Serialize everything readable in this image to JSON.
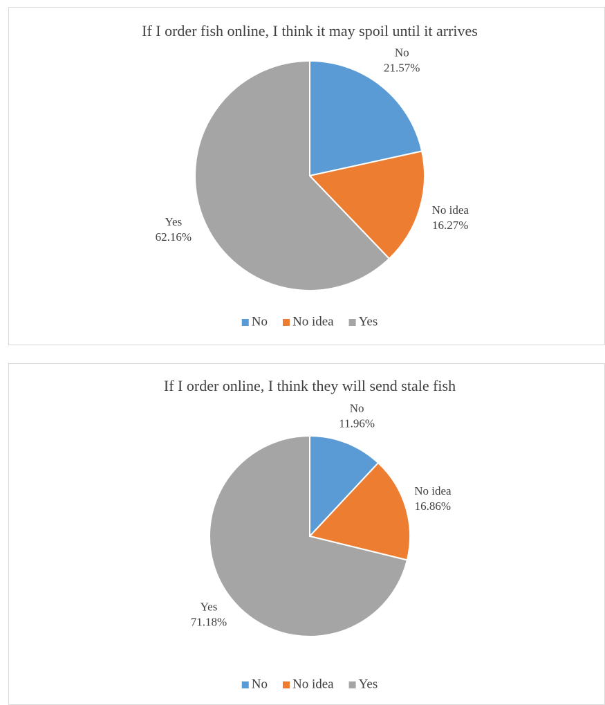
{
  "chart_data": [
    {
      "type": "pie",
      "title": "If I order fish online, I think it may spoil until it arrives",
      "categories": [
        "No",
        "No idea",
        "Yes"
      ],
      "values": [
        21.57,
        16.27,
        62.16
      ],
      "value_labels": [
        "21.57%",
        "16.27%",
        "62.16%"
      ],
      "colors": [
        "#5b9bd5",
        "#ed7d31",
        "#a5a5a5"
      ],
      "legend": "bottom"
    },
    {
      "type": "pie",
      "title": "If I order online, I think they will send stale fish",
      "categories": [
        "No",
        "No idea",
        "Yes"
      ],
      "values": [
        11.96,
        16.86,
        71.18
      ],
      "value_labels": [
        "11.96%",
        "16.86%",
        "71.18%"
      ],
      "colors": [
        "#5b9bd5",
        "#ed7d31",
        "#a5a5a5"
      ],
      "legend": "bottom"
    }
  ]
}
